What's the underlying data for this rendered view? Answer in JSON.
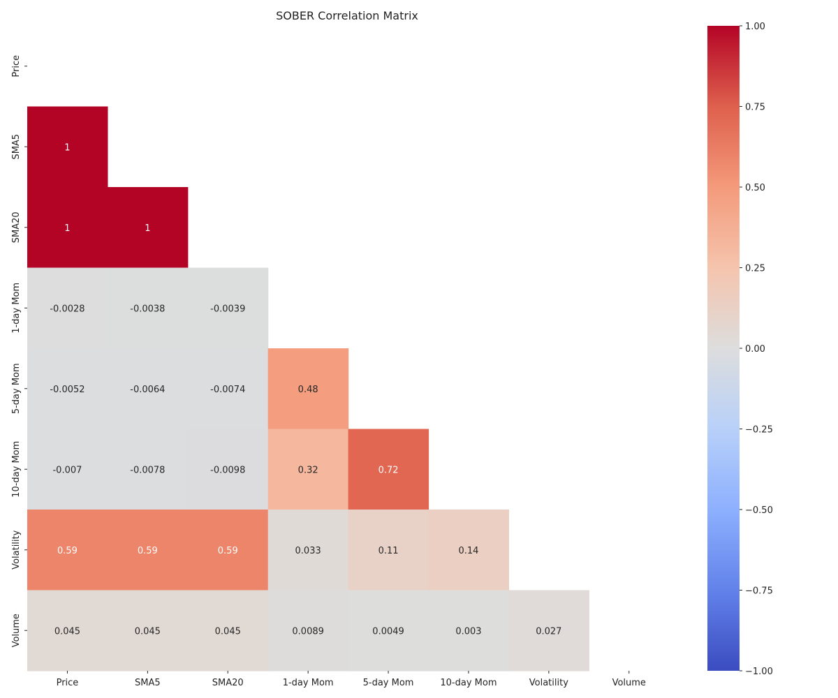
{
  "chart_data": {
    "type": "heatmap",
    "title": "SOBER Correlation Matrix",
    "variables": [
      "Price",
      "SMA5",
      "SMA20",
      "1-day Mom",
      "5-day Mom",
      "10-day Mom",
      "Volatility",
      "Volume"
    ],
    "mask": "upper-triangle including diagonal",
    "rows": [
      {
        "name": "Price",
        "values": []
      },
      {
        "name": "SMA5",
        "values": [
          1
        ]
      },
      {
        "name": "SMA20",
        "values": [
          1,
          1
        ]
      },
      {
        "name": "1-day Mom",
        "values": [
          -0.0028,
          -0.0038,
          -0.0039
        ]
      },
      {
        "name": "5-day Mom",
        "values": [
          -0.0052,
          -0.0064,
          -0.0074,
          0.48
        ]
      },
      {
        "name": "10-day Mom",
        "values": [
          -0.007,
          -0.0078,
          -0.0098,
          0.32,
          0.72
        ]
      },
      {
        "name": "Volatility",
        "values": [
          0.59,
          0.59,
          0.59,
          0.033,
          0.11,
          0.14
        ]
      },
      {
        "name": "Volume",
        "values": [
          0.045,
          0.045,
          0.045,
          0.0089,
          0.0049,
          0.003,
          0.027
        ]
      }
    ],
    "labels": {
      "SMA5": [
        "1"
      ],
      "SMA20": [
        "1",
        "1"
      ],
      "1-day Mom": [
        "-0.0028",
        "-0.0038",
        "-0.0039"
      ],
      "5-day Mom": [
        "-0.0052",
        "-0.0064",
        "-0.0074",
        "0.48"
      ],
      "10-day Mom": [
        "-0.007",
        "-0.0078",
        "-0.0098",
        "0.32",
        "0.72"
      ],
      "Volatility": [
        "0.59",
        "0.59",
        "0.59",
        "0.033",
        "0.11",
        "0.14"
      ],
      "Volume": [
        "0.045",
        "0.045",
        "0.045",
        "0.0089",
        "0.0049",
        "0.003",
        "0.027"
      ]
    },
    "colormap": "coolwarm",
    "vmin": -1,
    "vmax": 1,
    "colorbar_ticks": [
      1.0,
      0.75,
      0.5,
      0.25,
      0.0,
      -0.25,
      -0.5,
      -0.75,
      -1.0
    ],
    "colorbar_tick_labels": [
      "1.00",
      "0.75",
      "0.50",
      "0.25",
      "0.00",
      "−0.25",
      "−0.50",
      "−0.75",
      "−1.00"
    ]
  }
}
